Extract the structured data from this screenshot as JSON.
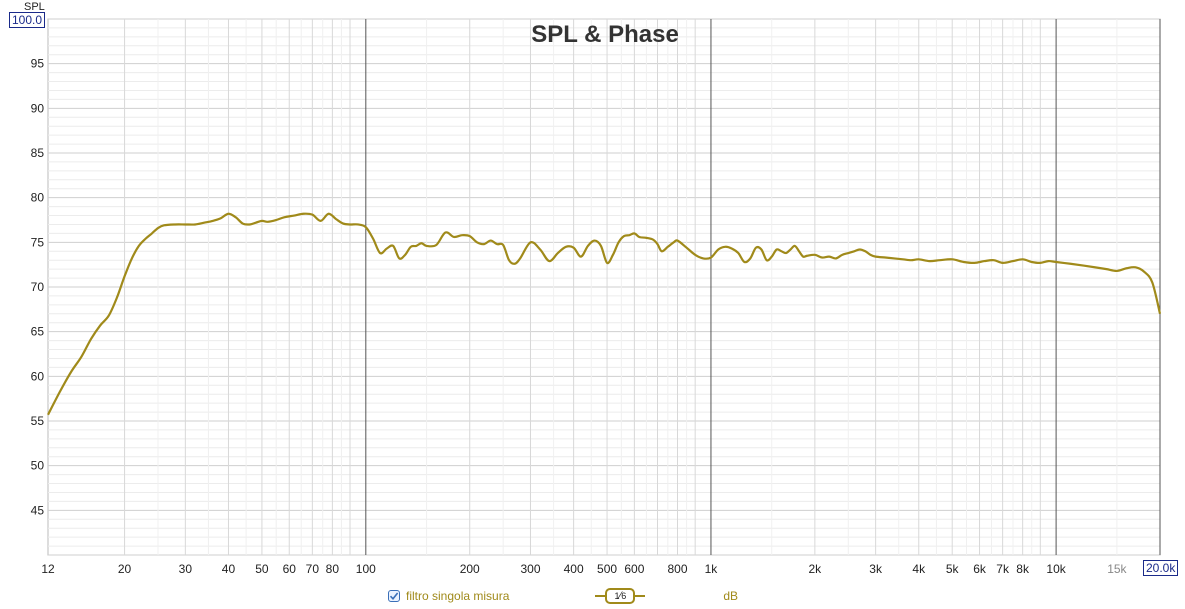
{
  "title": "SPL & Phase",
  "y_axis_name": "SPL",
  "y_max_label": "100.0",
  "x_max_label": "20.0k",
  "legend": {
    "series_label": "filtro singola misura",
    "checked": true,
    "smoothing_numerator": "1",
    "smoothing_denominator": "6",
    "unit": "dB"
  },
  "colors": {
    "series": "#a08a1a",
    "grid": "#d8d8d8",
    "grid_major": "#555555",
    "accent_box": "#1a2a8a"
  },
  "chart_data": {
    "type": "line",
    "title": "SPL & Phase",
    "xlabel": "",
    "ylabel": "SPL",
    "x_scale": "log",
    "xlim": [
      12,
      20000
    ],
    "ylim": [
      40,
      100
    ],
    "grid": true,
    "legend_position": "bottom",
    "y_ticks": [
      45,
      50,
      55,
      60,
      65,
      70,
      75,
      80,
      85,
      90,
      95
    ],
    "x_ticks": [
      {
        "value": 12,
        "label": "12"
      },
      {
        "value": 20,
        "label": "20"
      },
      {
        "value": 30,
        "label": "30"
      },
      {
        "value": 40,
        "label": "40"
      },
      {
        "value": 50,
        "label": "50"
      },
      {
        "value": 60,
        "label": "60"
      },
      {
        "value": 70,
        "label": "70"
      },
      {
        "value": 80,
        "label": "80"
      },
      {
        "value": 100,
        "label": "100"
      },
      {
        "value": 200,
        "label": "200"
      },
      {
        "value": 300,
        "label": "300"
      },
      {
        "value": 400,
        "label": "400"
      },
      {
        "value": 500,
        "label": "500"
      },
      {
        "value": 600,
        "label": "600"
      },
      {
        "value": 800,
        "label": "800"
      },
      {
        "value": 1000,
        "label": "1k"
      },
      {
        "value": 2000,
        "label": "2k"
      },
      {
        "value": 3000,
        "label": "3k"
      },
      {
        "value": 4000,
        "label": "4k"
      },
      {
        "value": 5000,
        "label": "5k"
      },
      {
        "value": 6000,
        "label": "6k"
      },
      {
        "value": 7000,
        "label": "7k"
      },
      {
        "value": 8000,
        "label": "8k"
      },
      {
        "value": 10000,
        "label": "10k"
      },
      {
        "value": 15000,
        "label": "15k",
        "minor": true
      }
    ],
    "series": [
      {
        "name": "filtro singola misura",
        "x": [
          12,
          13,
          14,
          15,
          16,
          17,
          18,
          19,
          20,
          21,
          22,
          23,
          24,
          25,
          26,
          28,
          30,
          32,
          34,
          36,
          38,
          40,
          42,
          44,
          46,
          48,
          50,
          52,
          55,
          58,
          62,
          66,
          70,
          74,
          78,
          82,
          86,
          90,
          95,
          100,
          105,
          110,
          115,
          120,
          125,
          130,
          135,
          140,
          145,
          150,
          160,
          170,
          180,
          190,
          200,
          210,
          220,
          230,
          240,
          250,
          260,
          270,
          280,
          300,
          320,
          340,
          360,
          380,
          400,
          420,
          440,
          460,
          480,
          500,
          520,
          540,
          560,
          580,
          600,
          620,
          650,
          680,
          700,
          720,
          750,
          780,
          800,
          850,
          900,
          950,
          1000,
          1050,
          1100,
          1150,
          1200,
          1250,
          1300,
          1350,
          1400,
          1450,
          1500,
          1550,
          1600,
          1650,
          1700,
          1750,
          1800,
          1850,
          1900,
          2000,
          2100,
          2200,
          2300,
          2400,
          2500,
          2600,
          2700,
          2800,
          2900,
          3000,
          3200,
          3400,
          3600,
          3800,
          4000,
          4300,
          4600,
          5000,
          5400,
          5800,
          6200,
          6600,
          7000,
          7500,
          8000,
          8500,
          9000,
          9500,
          10000,
          11000,
          12000,
          13000,
          14000,
          15000,
          16000,
          17000,
          18000,
          19000,
          20000
        ],
        "y": [
          55.7,
          58.3,
          60.5,
          62.2,
          64.2,
          65.7,
          66.8,
          68.8,
          71.2,
          73.2,
          74.6,
          75.4,
          76.0,
          76.6,
          76.9,
          77.0,
          77.0,
          77.0,
          77.2,
          77.4,
          77.7,
          78.2,
          77.8,
          77.1,
          77.0,
          77.2,
          77.4,
          77.3,
          77.5,
          77.8,
          78.0,
          78.2,
          78.1,
          77.4,
          78.2,
          77.6,
          77.1,
          77.0,
          77.0,
          76.7,
          75.4,
          73.8,
          74.3,
          74.6,
          73.2,
          73.6,
          74.5,
          74.6,
          74.9,
          74.6,
          74.7,
          76.1,
          75.6,
          75.8,
          75.7,
          75.0,
          74.8,
          75.2,
          74.8,
          74.7,
          73.0,
          72.6,
          73.2,
          75.0,
          74.2,
          72.9,
          73.8,
          74.5,
          74.4,
          73.4,
          74.6,
          75.2,
          74.6,
          72.7,
          73.6,
          75.0,
          75.7,
          75.8,
          76.0,
          75.6,
          75.5,
          75.3,
          74.8,
          74.0,
          74.5,
          75.0,
          75.2,
          74.4,
          73.6,
          73.2,
          73.3,
          74.2,
          74.5,
          74.3,
          73.8,
          72.8,
          73.2,
          74.4,
          74.2,
          73.0,
          73.4,
          74.2,
          74.0,
          73.8,
          74.2,
          74.6,
          74.0,
          73.4,
          73.5,
          73.6,
          73.3,
          73.4,
          73.2,
          73.6,
          73.8,
          74.0,
          74.2,
          74.0,
          73.6,
          73.4,
          73.3,
          73.2,
          73.1,
          73.0,
          73.1,
          72.9,
          73.0,
          73.1,
          72.8,
          72.7,
          72.9,
          73.0,
          72.7,
          72.9,
          73.1,
          72.8,
          72.7,
          72.9,
          72.8,
          72.6,
          72.4,
          72.2,
          72.0,
          71.8,
          72.1,
          72.2,
          71.7,
          70.5,
          67.0
        ]
      }
    ]
  }
}
